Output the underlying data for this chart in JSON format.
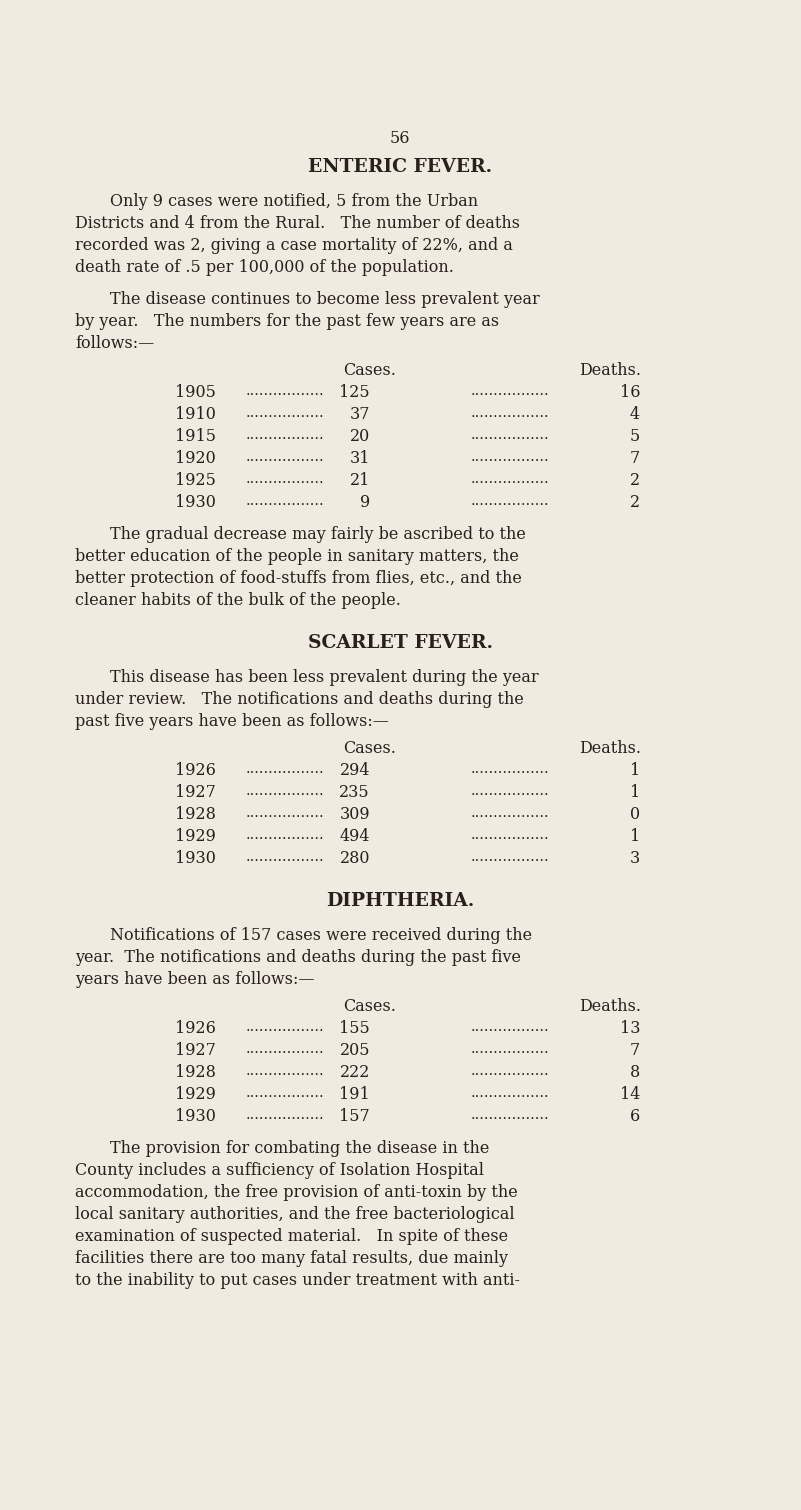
{
  "background_color": "#f0ebe0",
  "text_color": "#2a1f1a",
  "page_number": "56",
  "section1_title": "ENTERIC FEVER.",
  "section1_para1_lines": [
    "Only 9 cases were notified, 5 from the Urban",
    "Districts and 4 from the Rural.   The number of deaths",
    "recorded was 2, giving a case mortality of 22%, and a",
    "death rate of .5 per 100,000 of the population."
  ],
  "section1_para2_lines": [
    "The disease continues to become less prevalent year",
    "by year.   The numbers for the past few years are as",
    "follows:—"
  ],
  "section1_table": [
    [
      "1905",
      "125",
      "16"
    ],
    [
      "1910",
      "37",
      "4"
    ],
    [
      "1915",
      "20",
      "5"
    ],
    [
      "1920",
      "31",
      "7"
    ],
    [
      "1925",
      "21",
      "2"
    ],
    [
      "1930",
      "9",
      "2"
    ]
  ],
  "section1_para3_lines": [
    "The gradual decrease may fairly be ascribed to the",
    "better education of the people in sanitary matters, the",
    "better protection of food-stuffs from flies, etc., and the",
    "cleaner habits of the bulk of the people."
  ],
  "section2_title": "SCARLET FEVER.",
  "section2_para1_lines": [
    "This disease has been less prevalent during the year",
    "under review.   The notifications and deaths during the",
    "past five years have been as follows:—"
  ],
  "section2_table": [
    [
      "1926",
      "294",
      "1"
    ],
    [
      "1927",
      "235",
      "1"
    ],
    [
      "1928",
      "309",
      "0"
    ],
    [
      "1929",
      "494",
      "1"
    ],
    [
      "1930",
      "280",
      "3"
    ]
  ],
  "section3_title": "DIPHTHERIA.",
  "section3_para1_lines": [
    "Notifications of 157 cases were received during the",
    "year.  The notifications and deaths during the past five",
    "years have been as follows:—"
  ],
  "section3_table": [
    [
      "1926",
      "155",
      "13"
    ],
    [
      "1927",
      "205",
      "7"
    ],
    [
      "1928",
      "222",
      "8"
    ],
    [
      "1929",
      "191",
      "14"
    ],
    [
      "1930",
      "157",
      "6"
    ]
  ],
  "section3_para2_lines": [
    "The provision for combating the disease in the",
    "County includes a sufficiency of Isolation Hospital",
    "accommodation, the free provision of anti-toxin by the",
    "local sanitary authorities, and the free bacteriological",
    "examination of suspected material.   In spite of these",
    "facilities there are too many fatal results, due mainly",
    "to the inability to put cases under treatment with anti-"
  ]
}
